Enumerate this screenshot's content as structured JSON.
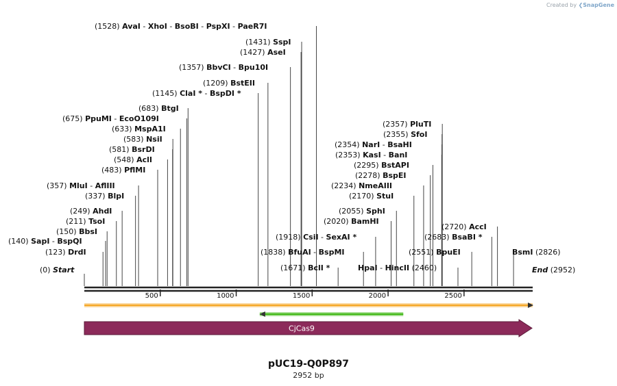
{
  "watermark": {
    "prefix": "Created by",
    "brand": "SnapGene"
  },
  "plasmid": {
    "name": "pUC19-Q0P897",
    "length_label": "2952 bp",
    "length": 2952
  },
  "ruler": {
    "ticks": [
      500,
      1000,
      1500,
      2000,
      2500
    ]
  },
  "ends": [
    {
      "id": "start",
      "text": "Start",
      "pos": 0,
      "num": "(0)"
    },
    {
      "id": "end",
      "text": "End",
      "pos": 2952,
      "num": "(2952)"
    }
  ],
  "labels": [
    {
      "id": "drdi",
      "num": "(123)",
      "enz": [
        "DrdI"
      ],
      "pos": 123
    },
    {
      "id": "sapi",
      "num": "(140)",
      "enz": [
        "SapI",
        "BspQI"
      ],
      "pos": 140
    },
    {
      "id": "bbsi",
      "num": "(150)",
      "enz": [
        "BbsI"
      ],
      "pos": 150
    },
    {
      "id": "tsoi",
      "num": "(211)",
      "enz": [
        "TsoI"
      ],
      "pos": 211
    },
    {
      "id": "ahdi",
      "num": "(249)",
      "enz": [
        "AhdI"
      ],
      "pos": 249
    },
    {
      "id": "blpi",
      "num": "(337)",
      "enz": [
        "BlpI"
      ],
      "pos": 337
    },
    {
      "id": "mlui",
      "num": "(357)",
      "enz": [
        "MluI",
        "AflIII"
      ],
      "pos": 357
    },
    {
      "id": "pflmi",
      "num": "(483)",
      "enz": [
        "PflMI"
      ],
      "pos": 483
    },
    {
      "id": "acli",
      "num": "(548)",
      "enz": [
        "AclI"
      ],
      "pos": 548
    },
    {
      "id": "bsrdi",
      "num": "(581)",
      "enz": [
        "BsrDI"
      ],
      "pos": 581
    },
    {
      "id": "nsii",
      "num": "(583)",
      "enz": [
        "NsiI"
      ],
      "pos": 583
    },
    {
      "id": "mspa1i",
      "num": "(633)",
      "enz": [
        "MspA1I"
      ],
      "pos": 633
    },
    {
      "id": "ppumi",
      "num": "(675)",
      "enz": [
        "PpuMI",
        "EcoO109I"
      ],
      "pos": 675
    },
    {
      "id": "btgi",
      "num": "(683)",
      "enz": [
        "BtgI"
      ],
      "pos": 683
    },
    {
      "id": "clai",
      "num": "(1145)",
      "enz": [
        "ClaI *",
        "BspDI *"
      ],
      "pos": 1145
    },
    {
      "id": "bsteii",
      "num": "(1209)",
      "enz": [
        "BstEII"
      ],
      "pos": 1209
    },
    {
      "id": "bbvci",
      "num": "(1357)",
      "enz": [
        "BbvCI",
        "Bpu10I"
      ],
      "pos": 1357
    },
    {
      "id": "asei",
      "num": "(1427)",
      "enz": [
        "AseI"
      ],
      "pos": 1427
    },
    {
      "id": "sspi",
      "num": "(1431)",
      "enz": [
        "SspI"
      ],
      "pos": 1431
    },
    {
      "id": "avai",
      "num": "(1528)",
      "enz": [
        "AvaI",
        "XhoI",
        "BsoBI",
        "PspXI",
        "PaeR7I"
      ],
      "pos": 1528
    },
    {
      "id": "bcli",
      "num": "(1671)",
      "enz": [
        "BclI *"
      ],
      "pos": 1671
    },
    {
      "id": "bfuai",
      "num": "(1838)",
      "enz": [
        "BfuAI",
        "BspMI"
      ],
      "pos": 1838
    },
    {
      "id": "csii",
      "num": "(1918)",
      "enz": [
        "CsiI",
        "SexAI *"
      ],
      "pos": 1918
    },
    {
      "id": "bamhi",
      "num": "(2020)",
      "enz": [
        "BamHI"
      ],
      "pos": 2020
    },
    {
      "id": "sphi",
      "num": "(2055)",
      "enz": [
        "SphI"
      ],
      "pos": 2055
    },
    {
      "id": "stui",
      "num": "(2170)",
      "enz": [
        "StuI"
      ],
      "pos": 2170
    },
    {
      "id": "nmeaiii",
      "num": "(2234)",
      "enz": [
        "NmeAIII"
      ],
      "pos": 2234
    },
    {
      "id": "bspei",
      "num": "(2278)",
      "enz": [
        "BspEI"
      ],
      "pos": 2278
    },
    {
      "id": "bstapi",
      "num": "(2295)",
      "enz": [
        "BstAPI"
      ],
      "pos": 2295
    },
    {
      "id": "kasi",
      "num": "(2353)",
      "enz": [
        "KasI",
        "BanI"
      ],
      "pos": 2353
    },
    {
      "id": "nari",
      "num": "(2354)",
      "enz": [
        "NarI",
        "BsaHI"
      ],
      "pos": 2354
    },
    {
      "id": "sfoi",
      "num": "(2355)",
      "enz": [
        "SfoI"
      ],
      "pos": 2355
    },
    {
      "id": "pluti",
      "num": "(2357)",
      "enz": [
        "PluTI"
      ],
      "pos": 2357
    },
    {
      "id": "hpai",
      "num": "(2460)",
      "enz": [
        "HpaI",
        "HincII"
      ],
      "pos": 2460
    },
    {
      "id": "bpuei",
      "num": "(2551)",
      "enz": [
        "BpuEI"
      ],
      "pos": 2551
    },
    {
      "id": "bsabi",
      "num": "(2683)",
      "enz": [
        "BsaBI *"
      ],
      "pos": 2683
    },
    {
      "id": "acci",
      "num": "(2720)",
      "enz": [
        "AccI"
      ],
      "pos": 2720
    },
    {
      "id": "bsmi",
      "num": "(2826)",
      "enz": [
        "BsmI"
      ],
      "pos": 2826
    }
  ],
  "features": [
    {
      "id": "orange",
      "kind": "line",
      "start": 0,
      "end": 2952,
      "color": "#f5a623",
      "direction": "right"
    },
    {
      "id": "green",
      "kind": "line",
      "start": 1155,
      "end": 2100,
      "color": "#3bb60f",
      "direction": "left"
    },
    {
      "id": "cjcas9",
      "kind": "arrow",
      "start": 0,
      "end": 2952,
      "label": "CjCas9",
      "color": "#8c2a5a",
      "direction": "right"
    }
  ]
}
